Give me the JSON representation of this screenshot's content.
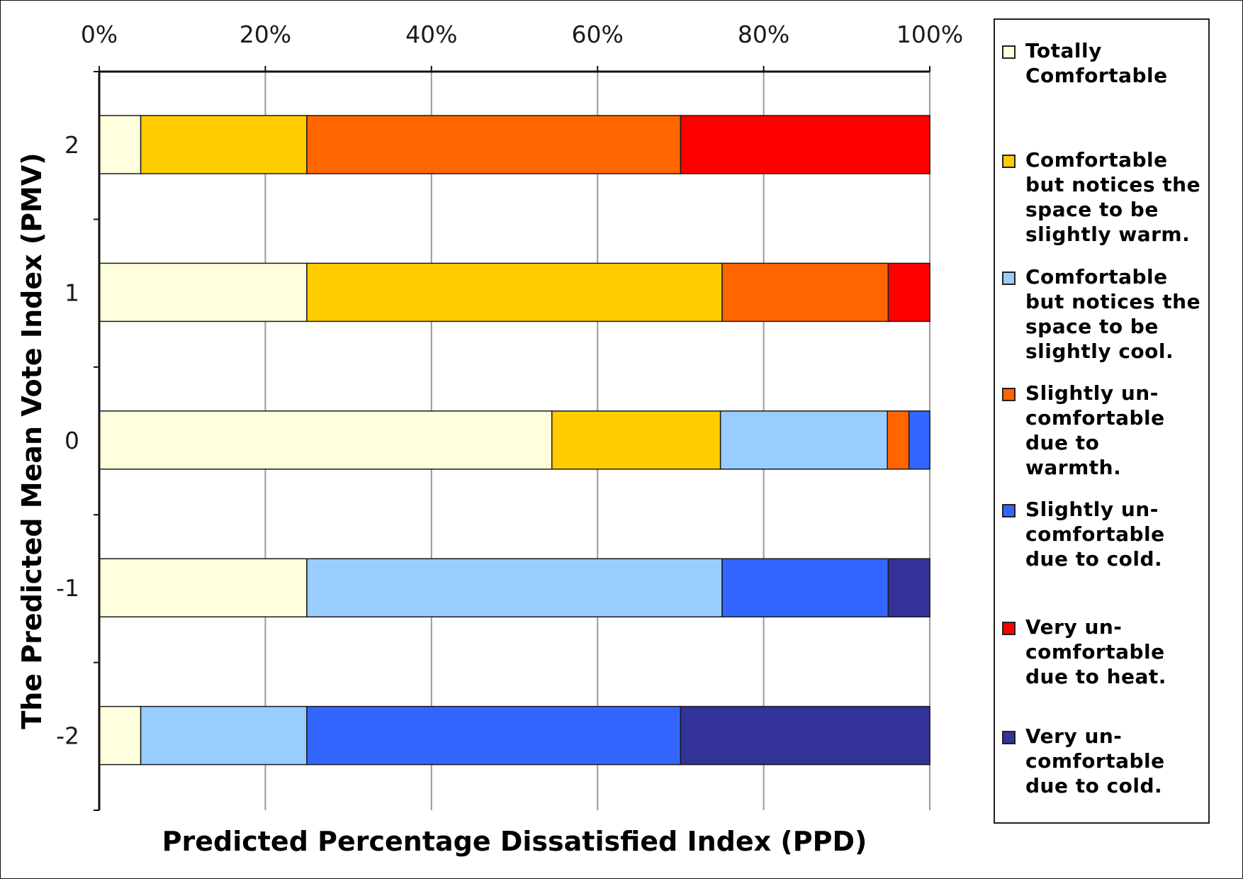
{
  "chart_data": {
    "type": "bar",
    "orientation": "horizontal",
    "stacked": "100%",
    "xlabel": "Predicted Percentage Dissatisfied Index (PPD)",
    "ylabel": "The Predicted Mean Vote Index (PMV)",
    "xlim": [
      0,
      100
    ],
    "x_ticks": [
      "0%",
      "20%",
      "40%",
      "60%",
      "80%",
      "100%"
    ],
    "categories": [
      "2",
      "1",
      "0",
      "-1",
      "-2"
    ],
    "grid": true,
    "legend_position": "right",
    "series": [
      {
        "name": "Totally Comfortable",
        "color": "#FFFFDD",
        "values": [
          5,
          25,
          54.5,
          25,
          5
        ]
      },
      {
        "name": "Comfortable but notices the space to be slightly warm.",
        "color": "#FFCC00",
        "values": [
          20,
          50,
          20.3,
          0,
          0
        ]
      },
      {
        "name": "Comfortable but notices the space to be slightly cool.",
        "color": "#99CCFF",
        "values": [
          0,
          0,
          20.1,
          50,
          20
        ]
      },
      {
        "name": "Slightly un-comfortable due to warmth.",
        "color": "#FF6600",
        "values": [
          45,
          20,
          2.6,
          0,
          0
        ]
      },
      {
        "name": "Slightly un-comfortable due to cold.",
        "color": "#3366FF",
        "values": [
          0,
          0,
          2.5,
          20,
          45
        ]
      },
      {
        "name": "Very un-comfortable due to heat.",
        "color": "#FF0000",
        "values": [
          30,
          5,
          0,
          0,
          0
        ]
      },
      {
        "name": "Very un-comfortable due to cold.",
        "color": "#333399",
        "values": [
          0,
          0,
          0,
          5,
          30
        ]
      }
    ],
    "legend_labels": [
      "Totally\nComfortable",
      "Comfortable\nbut notices the\nspace to be\nslightly warm.",
      "Comfortable\nbut notices the\nspace to be\nslightly cool.",
      "Slightly un-\ncomfortable\ndue to\nwarmth.",
      "Slightly un-\ncomfortable\ndue to cold.",
      "Very un-\ncomfortable\ndue to heat.",
      "Very un-\ncomfortable\ndue to cold."
    ]
  }
}
